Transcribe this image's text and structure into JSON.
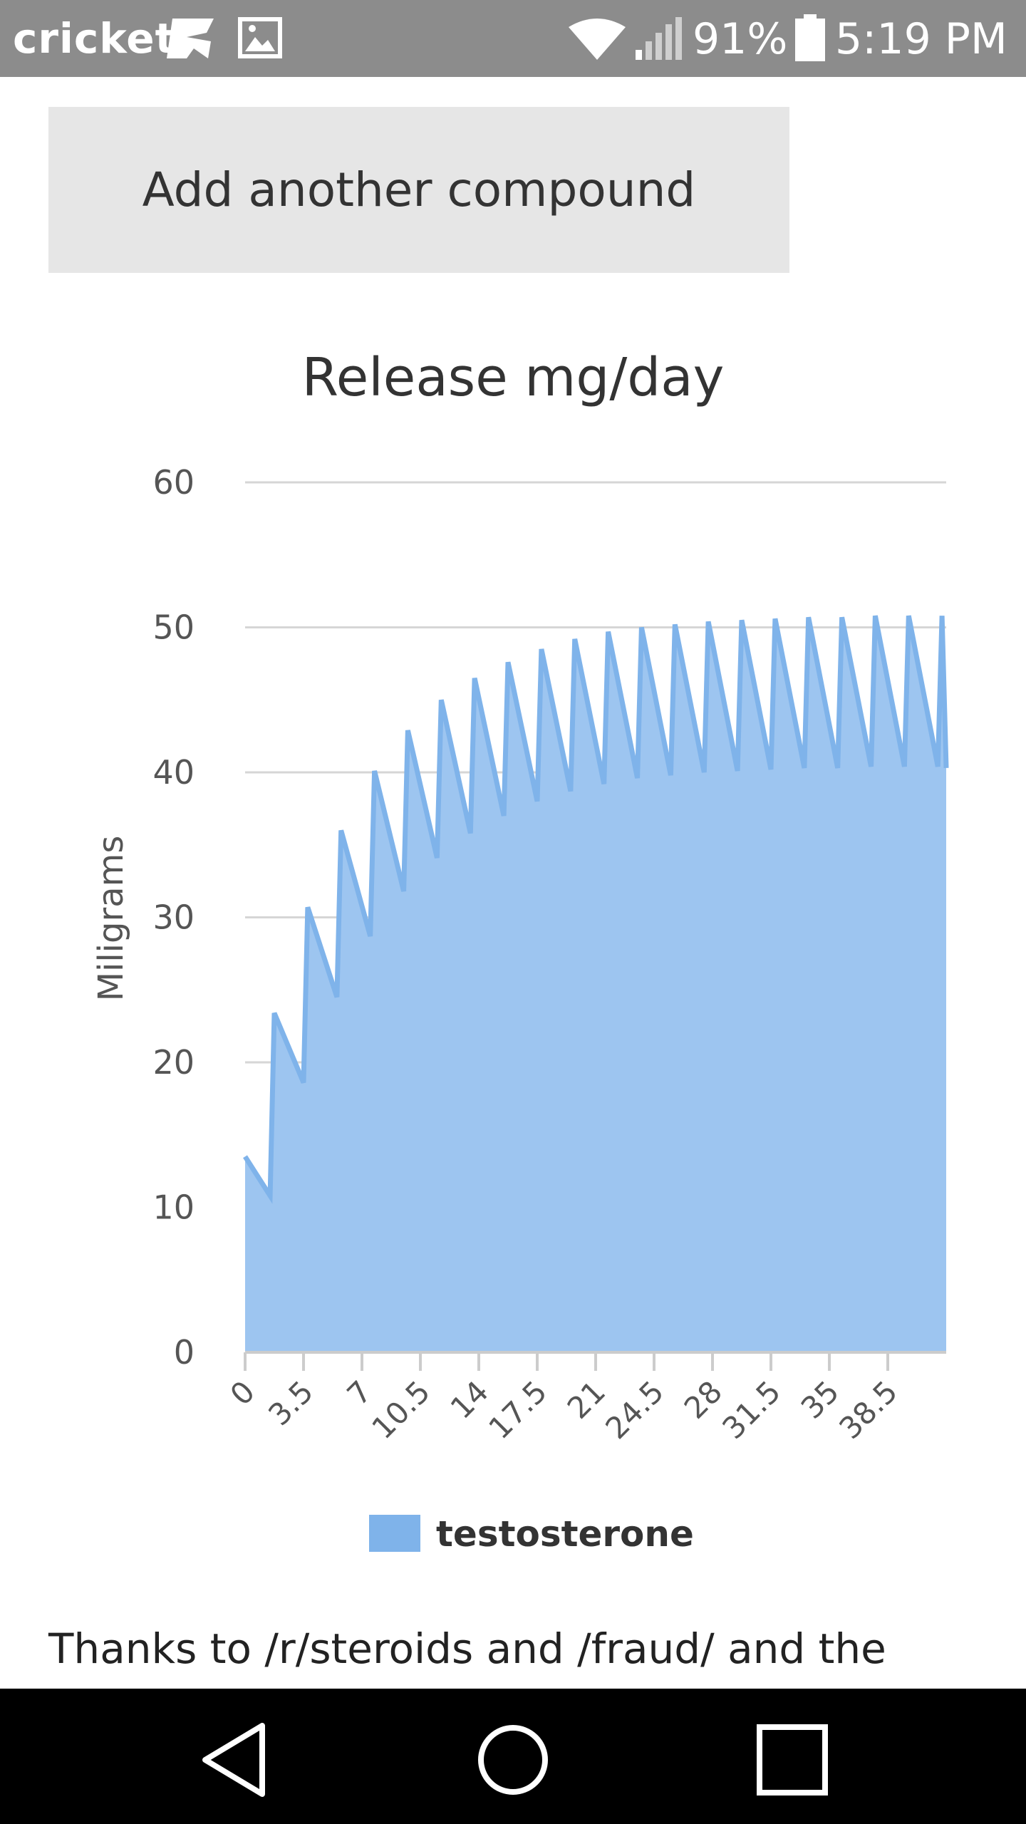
{
  "status_bar": {
    "carrier": "cricket",
    "battery": "91%",
    "time": "5:19 PM",
    "icons": [
      "cricket-logo-icon",
      "image-notification-icon",
      "wifi-icon",
      "signal-icon",
      "battery-icon"
    ]
  },
  "button": {
    "label": "Add another compound"
  },
  "chart_data": {
    "type": "area",
    "title": "Release mg/day",
    "ylabel": "Miligrams",
    "xlabel": "",
    "ylim": [
      0,
      60
    ],
    "xlim": [
      0,
      42
    ],
    "yticks": [
      "0",
      "10",
      "20",
      "30",
      "40",
      "50",
      "60"
    ],
    "xticks": [
      "0",
      "3.5",
      "7",
      "10.5",
      "14",
      "17.5",
      "21",
      "24.5",
      "28",
      "31.5",
      "35",
      "38.5"
    ],
    "grid": true,
    "legend_position": "bottom",
    "color": "#7fb3ea",
    "series": [
      {
        "name": "testosterone",
        "x": [
          0,
          1.5,
          1.75,
          3.5,
          3.75,
          5.5,
          5.75,
          7.5,
          7.75,
          9.5,
          9.75,
          11.5,
          11.75,
          13.5,
          13.75,
          15.5,
          15.75,
          17.5,
          17.75,
          19.5,
          19.75,
          21.5,
          21.75,
          23.5,
          23.75,
          25.5,
          25.75,
          27.5,
          27.75,
          29.5,
          29.75,
          31.5,
          31.75,
          33.5,
          33.75,
          35.5,
          35.75,
          37.5,
          37.75,
          39.5,
          39.75,
          41.5,
          41.75,
          42
        ],
        "y": [
          13.5,
          10.8,
          23.4,
          18.6,
          30.7,
          24.5,
          36.0,
          28.7,
          40.1,
          31.8,
          42.9,
          34.1,
          45.0,
          35.8,
          46.5,
          37.0,
          47.6,
          38.0,
          48.5,
          38.7,
          49.2,
          39.2,
          49.7,
          39.6,
          50.0,
          39.8,
          50.2,
          40.0,
          50.4,
          40.1,
          50.5,
          40.2,
          50.6,
          40.3,
          50.7,
          40.3,
          50.7,
          40.4,
          50.8,
          40.4,
          50.8,
          40.4,
          50.8,
          40.3
        ]
      }
    ]
  },
  "footer": {
    "text": "Thanks to /r/steroids and /fraud/ and the"
  },
  "nav_bar": {
    "icons": [
      "back-icon",
      "home-icon",
      "recents-icon"
    ]
  }
}
